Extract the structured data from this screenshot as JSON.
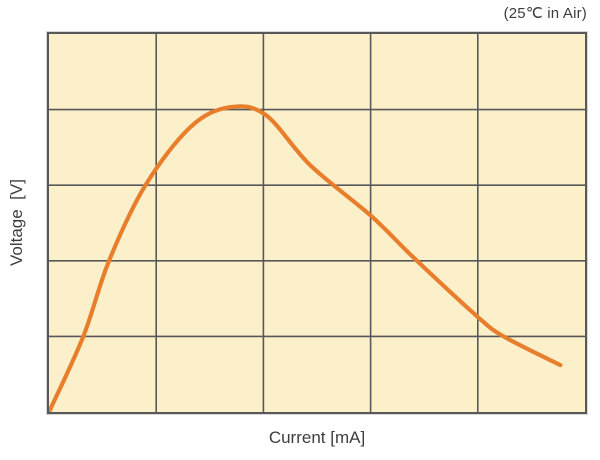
{
  "annotation": {
    "text": "(25℃ in Air)"
  },
  "axes": {
    "x_label": "Current [mA]",
    "y_label": "Voltage  [V]"
  },
  "colors": {
    "page_bg": "#ffffff",
    "plot_bg": "#fbf0c9",
    "grid": "#58585a",
    "curve": "#e87e2c",
    "text": "#3d3d3d"
  },
  "chart_data": {
    "type": "line",
    "title": "(25℃ in Air)",
    "xlabel": "Current [mA]",
    "ylabel": "Voltage [V]",
    "axis_tick_labels": "none (unlabeled axes)",
    "grid": {
      "cols": 5,
      "rows": 5,
      "visible": true
    },
    "xlim": [
      0,
      5
    ],
    "ylim": [
      0,
      5
    ],
    "units": "grid cells, origin at bottom-left of plot",
    "legend": "none",
    "series": [
      {
        "name": "voltage-vs-current-curve",
        "color": "#e87e2c",
        "points": [
          [
            0.0,
            0.0
          ],
          [
            0.32,
            1.0
          ],
          [
            0.56,
            2.0
          ],
          [
            0.9,
            3.0
          ],
          [
            1.32,
            3.77
          ],
          [
            1.68,
            4.03
          ],
          [
            2.02,
            3.93
          ],
          [
            2.44,
            3.26
          ],
          [
            3.0,
            2.6
          ],
          [
            3.41,
            2.03
          ],
          [
            3.99,
            1.27
          ],
          [
            4.24,
            1.0
          ],
          [
            4.77,
            0.62
          ]
        ]
      }
    ],
    "description": "Curve rises steeply from bottom-left origin, peaks at ~4 grid units height around x=1.7, then declines gradually, ending at ~(4.8, 0.6) before the right edge."
  }
}
